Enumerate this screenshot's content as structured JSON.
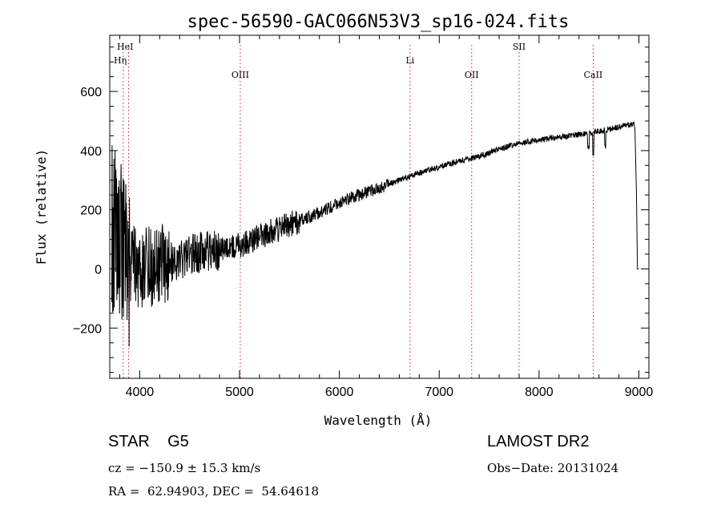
{
  "chart_data": {
    "type": "line",
    "title": "spec-56590-GAC066N53V3_sp16-024.fits",
    "xlabel": "Wavelength (Å)",
    "ylabel": "Flux (relative)",
    "xlim": [
      3700,
      9100
    ],
    "ylim": [
      -370,
      790
    ],
    "xticks": [
      4000,
      5000,
      6000,
      7000,
      8000,
      9000
    ],
    "xtick_labels": [
      "4000",
      "5000",
      "6000",
      "7000",
      "8000",
      "9000"
    ],
    "yticks": [
      -200,
      0,
      200,
      400,
      600
    ],
    "ytick_labels": [
      "−200",
      "0",
      "200",
      "400",
      "600"
    ],
    "grid": false,
    "spectrum_trend": [
      {
        "x": 3720,
        "y": 150
      },
      {
        "x": 3800,
        "y": 80
      },
      {
        "x": 3900,
        "y": 20
      },
      {
        "x": 4000,
        "y": 5
      },
      {
        "x": 4200,
        "y": 10
      },
      {
        "x": 4400,
        "y": 35
      },
      {
        "x": 4600,
        "y": 55
      },
      {
        "x": 4800,
        "y": 65
      },
      {
        "x": 5000,
        "y": 80
      },
      {
        "x": 5200,
        "y": 110
      },
      {
        "x": 5500,
        "y": 150
      },
      {
        "x": 5800,
        "y": 190
      },
      {
        "x": 6000,
        "y": 225
      },
      {
        "x": 6200,
        "y": 250
      },
      {
        "x": 6400,
        "y": 275
      },
      {
        "x": 6600,
        "y": 300
      },
      {
        "x": 6800,
        "y": 325
      },
      {
        "x": 7000,
        "y": 345
      },
      {
        "x": 7200,
        "y": 365
      },
      {
        "x": 7400,
        "y": 380
      },
      {
        "x": 7600,
        "y": 405
      },
      {
        "x": 7800,
        "y": 425
      },
      {
        "x": 8000,
        "y": 435
      },
      {
        "x": 8200,
        "y": 445
      },
      {
        "x": 8400,
        "y": 455
      },
      {
        "x": 8600,
        "y": 465
      },
      {
        "x": 8800,
        "y": 480
      },
      {
        "x": 8950,
        "y": 490
      }
    ],
    "lines": [
      {
        "label": "Hη",
        "x": 3835,
        "row": 2
      },
      {
        "label": "HeI",
        "x": 3889,
        "row": 1
      },
      {
        "label": "OIII",
        "x": 5007,
        "row": 3
      },
      {
        "label": "Li",
        "x": 6708,
        "row": 2
      },
      {
        "label": "OII",
        "x": 7325,
        "row": 3
      },
      {
        "label": "SII",
        "x": 7800,
        "row": 1
      },
      {
        "label": "CaII",
        "x": 8542,
        "row": 3
      }
    ],
    "line_color": "#000000",
    "marker_color": "#d11a1a"
  },
  "info": {
    "object_class": "STAR    G5",
    "survey": "LAMOST DR2",
    "redshift": "cz = −150.9 ± 15.3 km/s",
    "obs_date": "Obs−Date: 20131024",
    "radec": "RA =  62.94903, DEC =  54.64618"
  }
}
